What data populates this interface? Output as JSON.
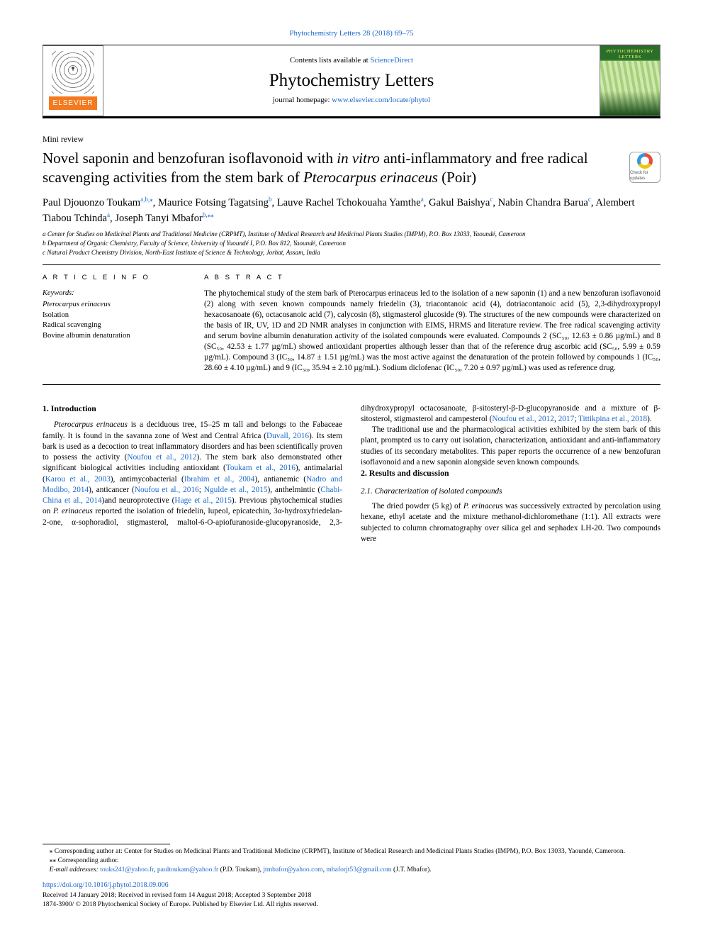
{
  "top_link": "Phytochemistry Letters 28 (2018) 69–75",
  "banner": {
    "contents_prefix": "Contents lists available at ",
    "contents_link": "ScienceDirect",
    "journal": "Phytochemistry Letters",
    "homepage_prefix": "journal homepage: ",
    "homepage_url": "www.elsevier.com/locate/phytol",
    "publisher": "ELSEVIER",
    "cover_label": "PHYTOCHEMISTRY LETTERS"
  },
  "article_type": "Mini review",
  "title_html": "Novel saponin and benzofuran isoflavonoid with <em>in vitro</em> anti-inflammatory and free radical scavenging activities from the stem bark of <em>Pterocarpus erinaceus</em> (Poir)",
  "crossmark_label": "Check for updates",
  "authors_html": "Paul Djouonzo Toukam<span class='sup'>a,b,</span><span class='sup'>⁎</span>, Maurice Fotsing Tagatsing<span class='sup'>b</span>, Lauve Rachel Tchokouaha Yamthe<span class='sup'>a</span>, Gakul Baishya<span class='sup'>c</span>, Nabin Chandra Barua<span class='sup'>c</span>, Alembert Tiabou Tchinda<span class='sup'>a</span>, Joseph Tanyi Mbafor<span class='sup'>b,</span><span class='sup'>⁎⁎</span>",
  "affiliations": [
    "a Center for Studies on Medicinal Plants and Traditional Medicine (CRPMT), Institute of Medical Research and Medicinal Plants Studies (IMPM), P.O. Box 13033, Yaoundé, Cameroon",
    "b Department of Organic Chemistry, Faculty of Science, University of Yaoundé I, P.O. Box 812, Yaoundé, Cameroon",
    "c Natural Product Chemistry Division, North-East Institute of Science & Technology, Jorhat, Assam, India"
  ],
  "keywords_label": "Keywords:",
  "keywords": [
    "Pterocarpus erinaceus",
    "Isolation",
    "Radical scavenging",
    "Bovine albumin denaturation"
  ],
  "section_labels": {
    "info": "A R T I C L E  I N F O",
    "abstract": "A B S T R A C T"
  },
  "abstract": "The phytochemical study of the stem bark of Pterocarpus erinaceus led to the isolation of a new saponin (1) and a new benzofuran isoflavonoid (2) along with seven known compounds namely friedelin (3), triacontanoic acid (4), dotriacontanoic acid (5), 2,3-dihydroxypropyl hexacosanoate (6), octacosanoic acid (7), calycosin (8), stigmasterol glucoside (9). The structures of the new compounds were characterized on the basis of IR, UV, 1D and 2D NMR analyses in conjunction with EIMS, HRMS and literature review. The free radical scavenging activity and serum bovine albumin denaturation activity of the isolated compounds were evaluated. Compounds 2 (SC₅₀, 12.63 ± 0.86 µg/mL) and 8 (SC₅₀, 42.53 ± 1.77 µg/mL) showed antioxidant properties although lesser than that of the reference drug ascorbic acid (SC₅₀, 5.99 ± 0.59 µg/mL). Compound 3 (IC₅₀, 14.87 ± 1.51 µg/mL) was the most active against the denaturation of the protein followed by compounds 1 (IC₅₀, 28.60 ± 4.10 µg/mL) and 9 (IC₅₀, 35.94 ± 2.10 µg/mL). Sodium diclofenac (IC₅₀, 7.20 ± 0.97 µg/mL) was used as reference drug.",
  "intro_heading": "1. Introduction",
  "intro_html": "<em>Pterocarpus erinaceus</em> is a deciduous tree, 15–25 m tall and belongs to the Fabaceae family. It is found in the savanna zone of West and Central Africa (<a>Duvall, 2016</a>). Its stem bark is used as a decoction to treat inflammatory disorders and has been scientifically proven to possess the activity (<a>Noufou et al., 2012</a>). The stem bark also demonstrated other significant biological activities including antioxidant (<a>Toukam et al., 2016</a>), antimalarial (<a>Karou et al., 2003</a>), antimycobacterial (<a>Ibrahim et al., 2004</a>), antianemic (<a>Nadro and Modibo, 2014</a>), anticancer (<a>Noufou et al., 2016</a>; <a>Ngulde et al., 2015</a>), anthelmintic (<a>Chabi-China et al., 2014</a>)and neuroprotective (<a>Hage et al., 2015</a>). Previous phytochemical studies on <em>P. erinaceus</em> reported the isolation of friedelin, lupeol, epicatechin, 3α-hydroxyfriedelan-2-one, α-sophoradiol, stigmasterol, maltol-6-O-apiofuranoside-glucopyranoside, 2,3-dihydroxypropyl octacosanoate, β-sitosteryl-β-D-glucopyranoside and a mixture of β-sitosterol, stigmasterol and campesterol (<a>Noufou et al., 2012</a>, <a>2017</a>; <a>Tittikpina et al., 2018</a>).",
  "intro_p2": "The traditional use and the pharmacological activities exhibited by the stem bark of this plant, prompted us to carry out isolation, characterization, antioxidant and anti-inflammatory studies of its secondary metabolites. This paper reports the occurrence of a new benzofuran isoflavonoid and a new saponin alongside seven known compounds.",
  "results_heading": "2. Results and discussion",
  "results_sub": "2.1. Characterization of isolated compounds",
  "results_p1_html": "The dried powder (5 kg) of <em>P. erinaceus</em> was successively extracted by percolation using hexane, ethyl acetate and the mixture methanol-dichloromethane (1:1). All extracts were subjected to column chromatography over silica gel and sephadex LH-20. Two compounds were",
  "footnotes": {
    "corr1": "⁎ Corresponding author at: Center for Studies on Medicinal Plants and Traditional Medicine (CRPMT), Institute of Medical Research and Medicinal Plants Studies (IMPM), P.O. Box 13033, Yaoundé, Cameroon.",
    "corr2": "⁎⁎ Corresponding author.",
    "emails_label": "E-mail addresses:",
    "emails_html": "<a>touks241@yahoo.fr</a>, <a>paultoukam@yahoo.fr</a> (P.D. Toukam), <a>jtmbafor@yahoo.com</a>, <a>mbaforjt53@gmail.com</a> (J.T. Mbafor).",
    "doi": "https://doi.org/10.1016/j.phytol.2018.09.006",
    "received": "Received 14 January 2018; Received in revised form 14 August 2018; Accepted 3 September 2018",
    "copyright": "1874-3900/ © 2018 Phytochemical Society of Europe. Published by Elsevier Ltd. All rights reserved."
  },
  "colors": {
    "link": "#1968cb",
    "elsevier_orange": "#f47a20",
    "cover_green": "#2a6e2a"
  }
}
